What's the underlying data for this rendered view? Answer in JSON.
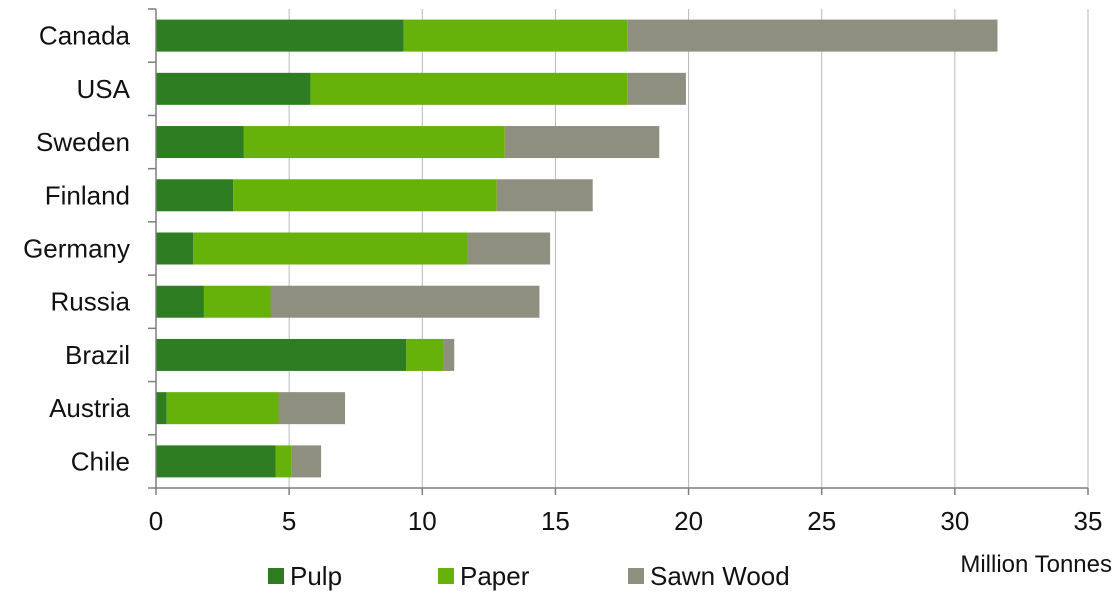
{
  "chart_data": {
    "type": "bar",
    "orientation": "horizontal",
    "stacked": true,
    "categories": [
      "Canada",
      "USA",
      "Sweden",
      "Finland",
      "Germany",
      "Russia",
      "Brazil",
      "Austria",
      "Chile"
    ],
    "series": [
      {
        "name": "Pulp",
        "color": "#2e7d22",
        "values": [
          9.3,
          5.8,
          3.3,
          2.9,
          1.4,
          1.8,
          9.4,
          0.4,
          4.5
        ]
      },
      {
        "name": "Paper",
        "color": "#66b10a",
        "values": [
          8.4,
          11.9,
          9.8,
          9.9,
          10.3,
          2.5,
          1.4,
          4.2,
          0.6
        ]
      },
      {
        "name": "Sawn Wood",
        "color": "#8f8f7f",
        "values": [
          13.9,
          2.2,
          5.8,
          3.6,
          3.1,
          10.1,
          0.4,
          2.5,
          1.1
        ]
      }
    ],
    "xlim": [
      0,
      35
    ],
    "xticks": [
      0,
      5,
      10,
      15,
      20,
      25,
      30,
      35
    ],
    "xlabel": "Million Tonnes",
    "ylabel": "",
    "title": "",
    "grid": "vertical",
    "legend": "bottom"
  }
}
